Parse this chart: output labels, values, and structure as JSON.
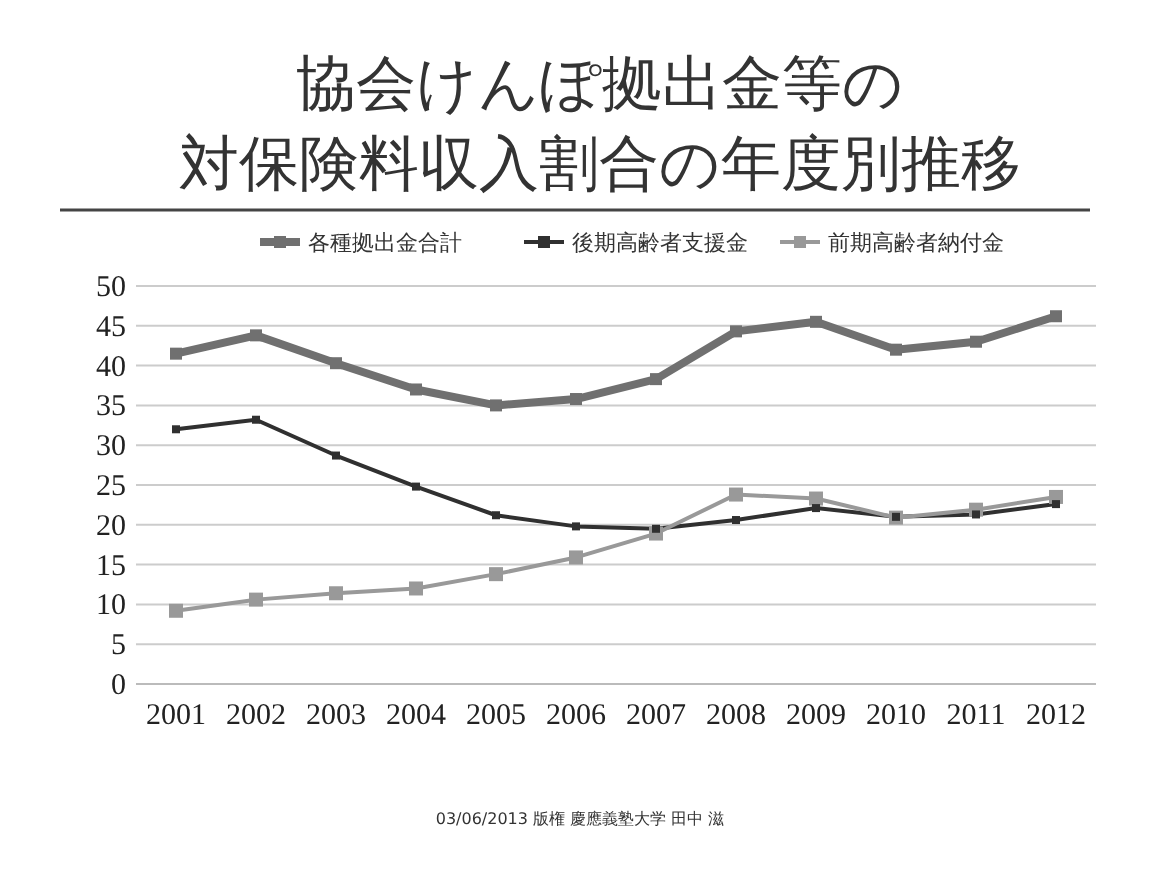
{
  "chart_data": {
    "type": "line",
    "title": "協会けんぽ拠出金等の",
    "subtitle": "対保険料収入割合の年度別推移",
    "categories": [
      "2001",
      "2002",
      "2003",
      "2004",
      "2005",
      "2006",
      "2007",
      "2008",
      "2009",
      "2010",
      "2011",
      "2012"
    ],
    "series": [
      {
        "name": "各種拠出金合計",
        "color": "#707070",
        "values": [
          41.5,
          43.8,
          40.3,
          37,
          35,
          35.8,
          38.3,
          44.3,
          45.5,
          42,
          43,
          46.2
        ]
      },
      {
        "name": "後期高齢者支援金",
        "color": "#303030",
        "values": [
          32,
          33.2,
          28.7,
          24.8,
          21.2,
          19.8,
          19.5,
          20.6,
          22.1,
          21,
          21.3,
          22.6
        ]
      },
      {
        "name": "前期高齢者納付金",
        "color": "#999999",
        "values": [
          9.2,
          10.6,
          11.4,
          12,
          13.8,
          15.9,
          18.9,
          23.8,
          23.3,
          20.9,
          21.9,
          23.5
        ]
      }
    ],
    "ylim": [
      0,
      50
    ],
    "yticks": [
      0,
      5,
      10,
      15,
      20,
      25,
      30,
      35,
      40,
      45,
      50
    ],
    "grid": "y",
    "legend": "top",
    "marker": "square",
    "annotations": [
      "03/06/2013 版権 慶應義塾大学 田中 滋"
    ]
  }
}
